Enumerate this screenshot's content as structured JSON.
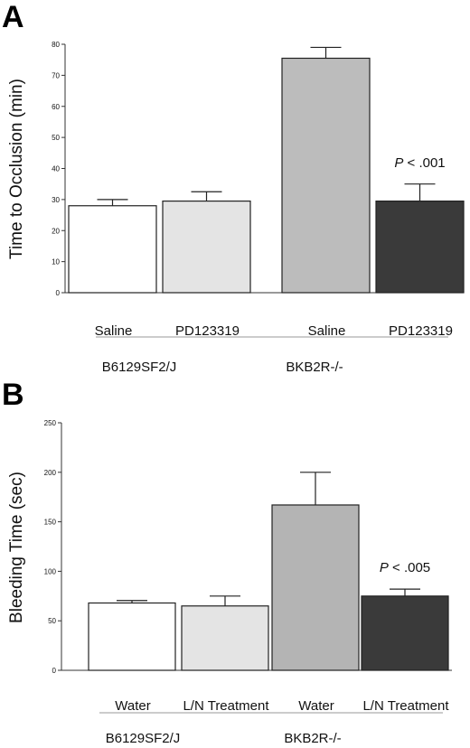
{
  "chart_data": [
    {
      "panel": "A",
      "type": "bar",
      "ylabel": "Time to Occlusion (min)",
      "ylim": [
        0,
        80
      ],
      "yticks": [
        0,
        10,
        20,
        30,
        40,
        50,
        60,
        70,
        80
      ],
      "categories": [
        "Saline",
        "PD123319",
        "Saline",
        "PD123319"
      ],
      "groups": [
        "B6129SF2/J",
        "BKB2R-/-"
      ],
      "values": [
        28,
        29.5,
        75.5,
        29.5
      ],
      "errors": [
        2,
        3,
        3.5,
        5.5
      ],
      "colors": [
        "#ffffff",
        "#e4e4e4",
        "#bcbcbc",
        "#3a3a3a"
      ],
      "annotation": {
        "p": "P",
        "rest": " < .001",
        "bar_index": 3
      }
    },
    {
      "panel": "B",
      "type": "bar",
      "ylabel": "Bleeding Time (sec)",
      "ylim": [
        0,
        250
      ],
      "yticks": [
        0,
        50,
        100,
        150,
        200,
        250
      ],
      "categories": [
        "Water",
        "L/N Treatment",
        "Water",
        "L/N Treatment"
      ],
      "groups": [
        "B6129SF2/J",
        "BKB2R-/-"
      ],
      "values": [
        68,
        65,
        167,
        75
      ],
      "errors": [
        2.5,
        10,
        33,
        7
      ],
      "colors": [
        "#ffffff",
        "#e4e4e4",
        "#b4b4b4",
        "#3a3a3a"
      ],
      "annotation": {
        "p": "P",
        "rest": " < .005",
        "bar_index": 3
      }
    }
  ]
}
